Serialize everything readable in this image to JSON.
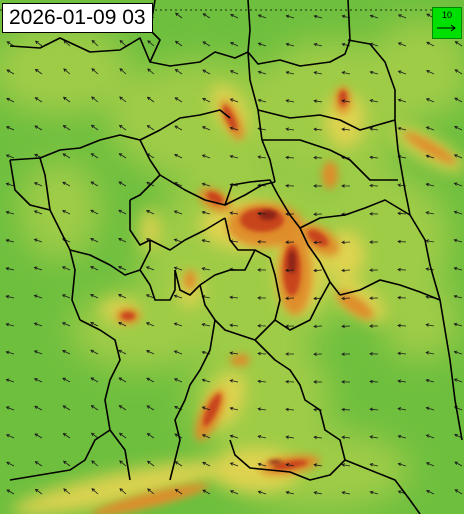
{
  "map": {
    "timestamp": "2026-01-09 03",
    "legend": {
      "reference_value": "10",
      "color": "#00e000"
    },
    "palette": {
      "background_green": "#6fbf3f",
      "light_green": "#a8cf4a",
      "yellow": "#e6d451",
      "orange": "#e08a2c",
      "red": "#c8451e",
      "dark_red": "#8b2412",
      "border": "#000000"
    }
  }
}
